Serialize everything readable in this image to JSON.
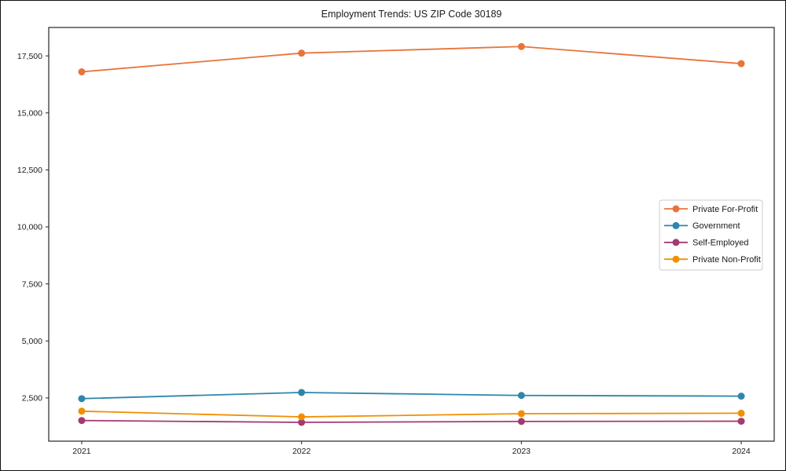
{
  "chart_data": {
    "type": "line",
    "title": "Employment Trends: US ZIP Code 30189",
    "x": [
      2021,
      2022,
      2023,
      2024
    ],
    "x_tick_labels": [
      "2021",
      "2022",
      "2023",
      "2024"
    ],
    "y_ticks": [
      2500,
      5000,
      7500,
      10000,
      12500,
      15000,
      17500
    ],
    "xlim": [
      2020.85,
      2024.15
    ],
    "ylim": [
      605,
      18745
    ],
    "grid": false,
    "legend_position": "center-right",
    "axis_color": "#262626",
    "text_color": "#1a1a1a",
    "series": [
      {
        "name": "Private For-Profit",
        "color": "#E8743B",
        "values": [
          16800,
          17620,
          17910,
          17160
        ]
      },
      {
        "name": "Government",
        "color": "#2E86AB",
        "values": [
          2470,
          2740,
          2610,
          2580
        ]
      },
      {
        "name": "Self-Employed",
        "color": "#A23B72",
        "values": [
          1510,
          1430,
          1470,
          1480
        ]
      },
      {
        "name": "Private Non-Profit",
        "color": "#F18F01",
        "values": [
          1920,
          1670,
          1810,
          1830
        ]
      }
    ]
  }
}
